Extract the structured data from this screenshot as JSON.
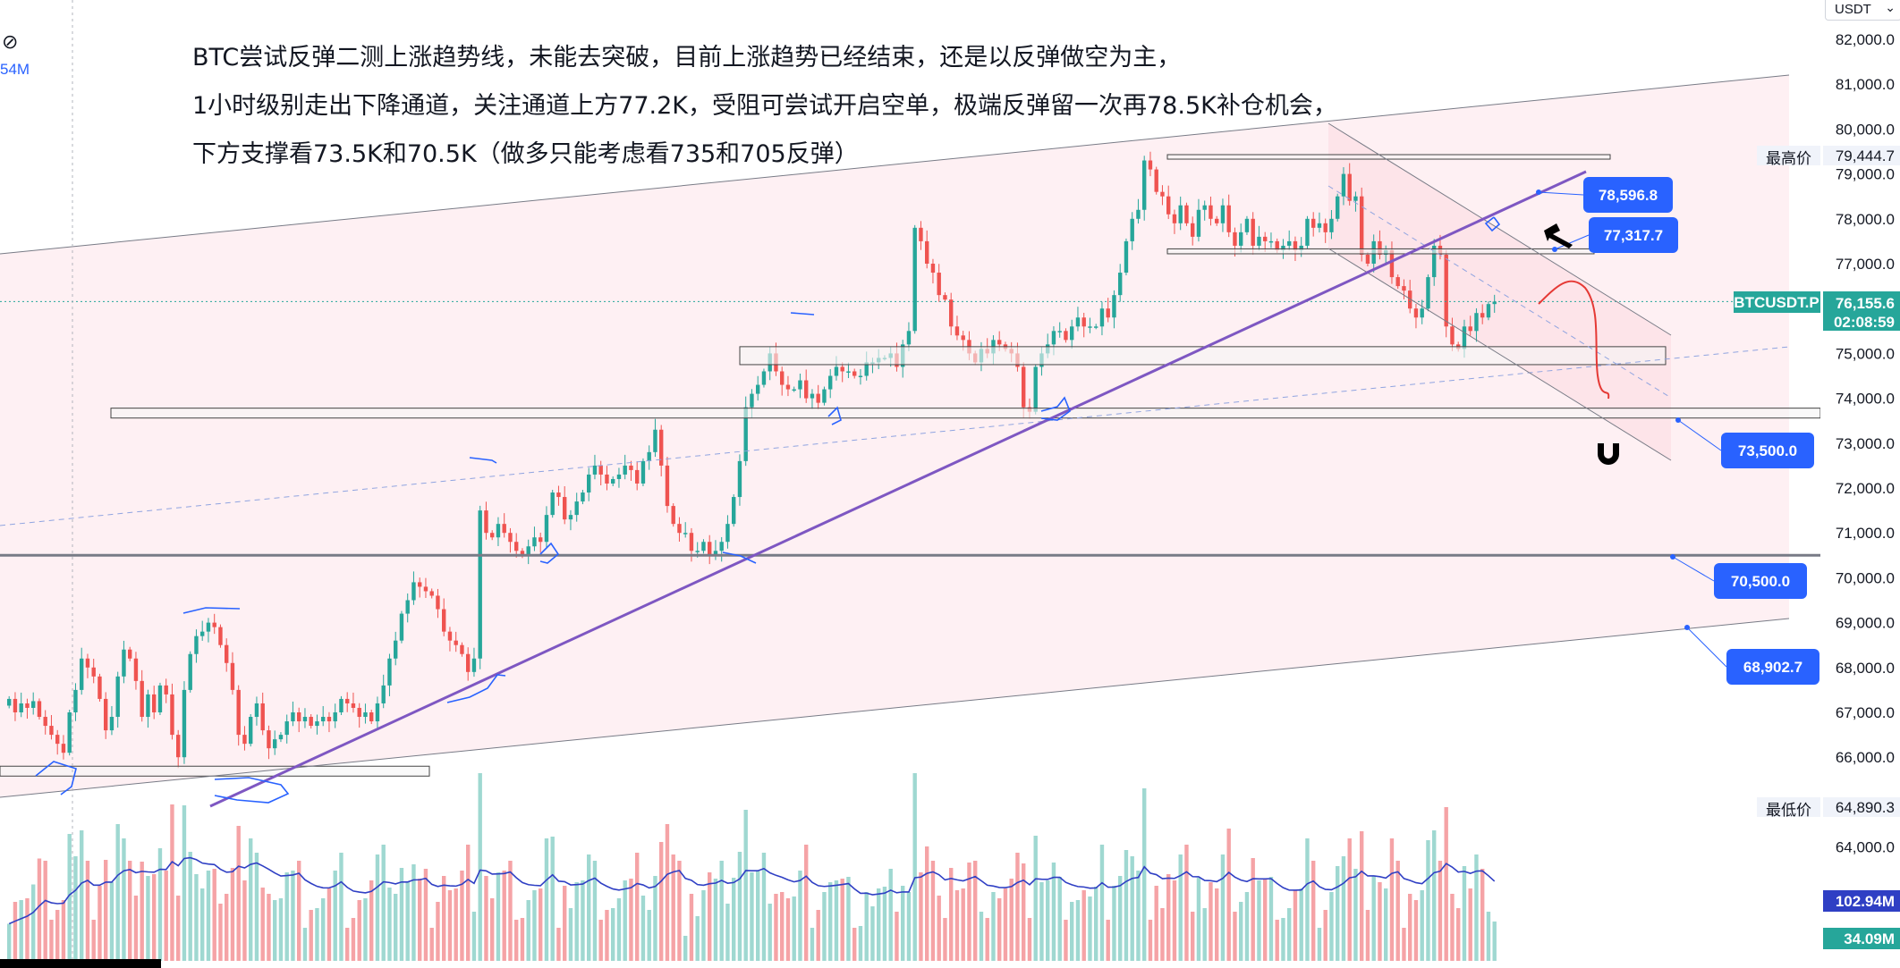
{
  "annotations": {
    "line1": "BTC尝试反弹二测上涨趋势线，未能去突破，目前上涨趋势已经结束，还是以反弹做空为主，",
    "line2": "1小时级别走出下降通道，关注通道上方77.2K，受阻可尝试开启空单，极端反弹留一次再78.5K补仓机会，",
    "line3": "下方支撑看73.5K和70.5K（做多只能考虑看735和705反弹）"
  },
  "top_left": {
    "volume_label": "54M"
  },
  "price_axis": {
    "currency": "USDT",
    "ticks": [
      "82,000.0",
      "81,000.0",
      "80,000.0",
      "79,000.0",
      "78,000.0",
      "77,000.0",
      "76,000.0",
      "75,000.0",
      "74,000.0",
      "73,000.0",
      "72,000.0",
      "71,000.0",
      "70,000.0",
      "69,000.0",
      "68,000.0",
      "67,000.0",
      "66,000.0",
      "64,000.0"
    ],
    "tick_values": [
      82000,
      81000,
      80000,
      79000,
      78000,
      77000,
      76000,
      75000,
      74000,
      73000,
      72000,
      71000,
      70000,
      69000,
      68000,
      67000,
      66000,
      64000
    ]
  },
  "labels": {
    "high_label": "最高价",
    "high_value": "79,444.7",
    "low_label": "最低价",
    "low_value": "64,890.3",
    "symbol": "BTCUSDT.P",
    "last_price": "76,155.6",
    "countdown": "02:08:59",
    "volume_current": "102.94M",
    "volume_ma": "34.09M"
  },
  "price_badges": [
    "78,596.8",
    "77,317.7",
    "73,500.0",
    "70,500.0",
    "68,902.7"
  ],
  "colors": {
    "up": "#26a69a",
    "down": "#ef5350",
    "trendline": "#7e57c2",
    "badge": "#2962ff",
    "ma": "#2f3fc4",
    "forecast": "#e53935"
  },
  "chart_data": {
    "type": "candlestick",
    "symbol": "BTCUSDT.P",
    "timeframe": "1h",
    "ylim": [
      64500,
      82500
    ],
    "close": [
      67300,
      67000,
      67200,
      67100,
      67250,
      66900,
      66700,
      66500,
      66300,
      66100,
      67000,
      67500,
      68200,
      68000,
      67800,
      67300,
      66600,
      66900,
      67800,
      68400,
      68200,
      67700,
      66900,
      67400,
      67000,
      67600,
      67400,
      66500,
      66000,
      67500,
      68300,
      68700,
      68800,
      69000,
      68900,
      68500,
      68100,
      67500,
      66500,
      66300,
      66900,
      67200,
      66600,
      66200,
      66400,
      66500,
      66800,
      67000,
      66800,
      66900,
      66700,
      66800,
      66900,
      66800,
      67000,
      67300,
      67200,
      67100,
      66900,
      67000,
      66800,
      67200,
      67600,
      68200,
      68600,
      69200,
      69500,
      69900,
      69800,
      69700,
      69600,
      69300,
      68800,
      68600,
      68500,
      68300,
      67900,
      68200,
      71500,
      71000,
      70900,
      71200,
      71000,
      70800,
      70600,
      70500,
      70700,
      70900,
      70800,
      71400,
      71900,
      71800,
      71300,
      71400,
      71700,
      71900,
      72300,
      72500,
      72300,
      72100,
      72200,
      72300,
      72500,
      72400,
      72100,
      72600,
      72800,
      73300,
      72500,
      71600,
      71200,
      71000,
      71000,
      70600,
      70600,
      70800,
      70500,
      70600,
      70800,
      71200,
      71800,
      72600,
      73800,
      74100,
      74300,
      74600,
      75000,
      74600,
      74300,
      74200,
      74200,
      74400,
      74000,
      74100,
      73900,
      74200,
      74500,
      74700,
      74600,
      74600,
      74500,
      74500,
      74800,
      74800,
      74900,
      74900,
      75000,
      74700,
      75200,
      75500,
      77800,
      77500,
      77000,
      76800,
      76300,
      76200,
      75600,
      75400,
      75300,
      75000,
      74800,
      75100,
      75000,
      75300,
      75200,
      75100,
      75000,
      74700,
      73800,
      73700,
      74700,
      75000,
      75200,
      75500,
      75500,
      75300,
      75600,
      75800,
      75600,
      75600,
      75600,
      76000,
      75800,
      76300,
      76800,
      77500,
      78000,
      78200,
      79300,
      79100,
      78600,
      78500,
      78100,
      77900,
      78300,
      77900,
      77600,
      78200,
      78300,
      78000,
      77900,
      78300,
      77700,
      77400,
      77700,
      78000,
      77400,
      77600,
      77500,
      77500,
      77300,
      77400,
      77500,
      77300,
      77400,
      78000,
      77800,
      77900,
      77700,
      78000,
      78500,
      79000,
      78400,
      78500,
      77200,
      77000,
      77500,
      77200,
      77300,
      76700,
      76500,
      76400,
      76000,
      75800,
      76000,
      76700,
      77400,
      77200,
      75600,
      75200,
      75100,
      75600,
      75500,
      75900,
      75800,
      76100,
      76155.6
    ],
    "volume_series": {
      "current": "102.94M",
      "ma": "34.09M"
    },
    "levels": [
      73500,
      70500,
      68902.7,
      77317.7,
      78596.8
    ]
  }
}
